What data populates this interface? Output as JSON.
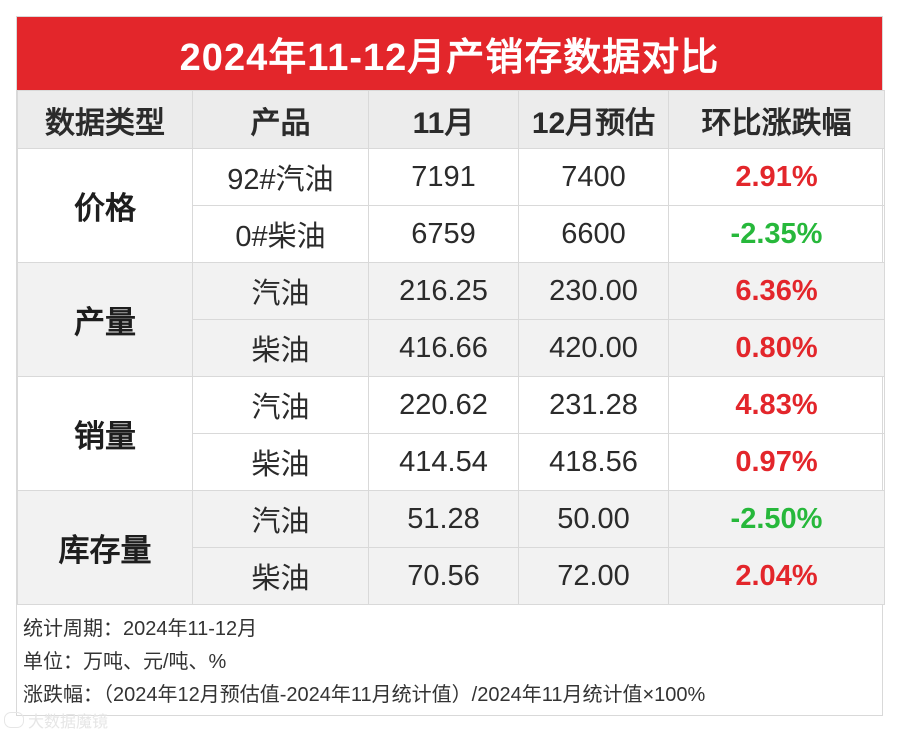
{
  "title": "2024年11-12月产销存数据对比",
  "headers": [
    "数据类型",
    "产品",
    "11月",
    "12月预估",
    "环比涨跌幅"
  ],
  "groups": [
    {
      "category": "价格",
      "rows": [
        {
          "product": "92#汽油",
          "nov": "7191",
          "dec": "7400",
          "change": "2.91%",
          "dir": "up"
        },
        {
          "product": "0#柴油",
          "nov": "6759",
          "dec": "6600",
          "change": "-2.35%",
          "dir": "down"
        }
      ]
    },
    {
      "category": "产量",
      "rows": [
        {
          "product": "汽油",
          "nov": "216.25",
          "dec": "230.00",
          "change": "6.36%",
          "dir": "up"
        },
        {
          "product": "柴油",
          "nov": "416.66",
          "dec": "420.00",
          "change": "0.80%",
          "dir": "up"
        }
      ]
    },
    {
      "category": "销量",
      "rows": [
        {
          "product": "汽油",
          "nov": "220.62",
          "dec": "231.28",
          "change": "4.83%",
          "dir": "up"
        },
        {
          "product": "柴油",
          "nov": "414.54",
          "dec": "418.56",
          "change": "0.97%",
          "dir": "up"
        }
      ]
    },
    {
      "category": "库存量",
      "rows": [
        {
          "product": "汽油",
          "nov": "51.28",
          "dec": "50.00",
          "change": "-2.50%",
          "dir": "down"
        },
        {
          "product": "柴油",
          "nov": "70.56",
          "dec": "72.00",
          "change": "2.04%",
          "dir": "up"
        }
      ]
    }
  ],
  "notes": [
    "统计周期：2024年11-12月",
    "单位：万吨、元/吨、%",
    "涨跌幅：（2024年12月预估值-2024年11月统计值）/2024年11月统计值×100%"
  ],
  "watermark": "大数据魔镜",
  "colors": {
    "header_red": "#e3262b",
    "up": "#e3262b",
    "down": "#27b83b"
  }
}
